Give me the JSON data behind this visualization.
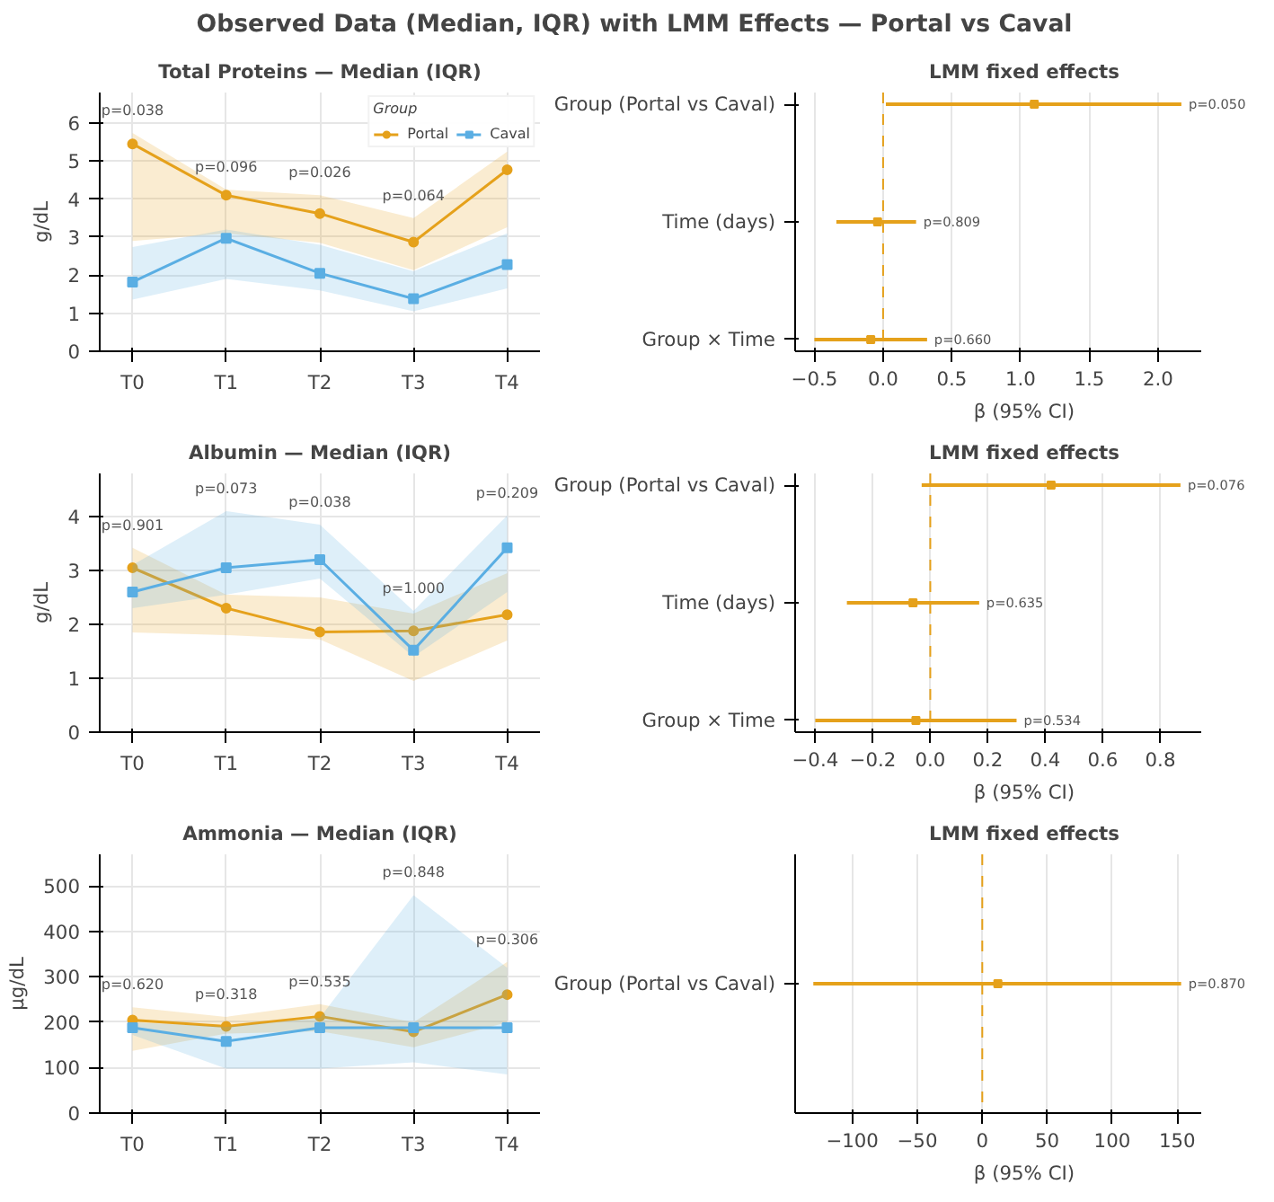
{
  "chart_data": [
    {
      "type": "other",
      "title": "Observed Data (Median, IQR) with LMM Effects — Portal vs Caval"
    },
    {
      "type": "line",
      "title": "Total Proteins — Median (IQR)",
      "ylabel": "g/dL",
      "categories": [
        "T0",
        "T1",
        "T2",
        "T3",
        "T4"
      ],
      "ylim": [
        0,
        6.8
      ],
      "yticks": [
        0,
        1,
        2,
        3,
        4,
        5,
        6
      ],
      "grid": true,
      "legend": "top right",
      "legend_title": "Group",
      "series": [
        {
          "name": "Portal",
          "color": "#e5a11b",
          "marker": "circle",
          "values": [
            5.45,
            4.1,
            3.62,
            2.87,
            4.77
          ],
          "lower": [
            2.9,
            3.1,
            2.85,
            2.13,
            3.26
          ],
          "upper": [
            5.74,
            4.25,
            4.1,
            3.5,
            5.25
          ]
        },
        {
          "name": "Caval",
          "color": "#5aaee3",
          "marker": "square",
          "values": [
            1.82,
            2.97,
            2.05,
            1.38,
            2.28
          ],
          "lower": [
            1.36,
            1.9,
            1.6,
            1.05,
            1.65
          ],
          "upper": [
            2.74,
            3.2,
            2.8,
            2.1,
            3.1
          ]
        }
      ],
      "annotations": [
        "p=0.038",
        "p=0.096",
        "p=0.026",
        "p=0.064"
      ]
    },
    {
      "type": "scatter",
      "orientation": "horizontal",
      "title": "LMM fixed effects",
      "xlabel": "β (95% CI)",
      "categories": [
        "Group (Portal vs Caval)",
        "Time (days)",
        "Group × Time"
      ],
      "xlim": [
        -0.64,
        2.31
      ],
      "xticks": [
        {
          "value": -0.5,
          "label": "−0.5"
        },
        {
          "value": 0,
          "label": "0.0"
        },
        0.5,
        {
          "value": 1,
          "label": "1.0"
        },
        1.5,
        {
          "value": 2,
          "label": "2.0"
        }
      ],
      "grid": "x",
      "marker": "square",
      "color": "#e5a11b",
      "values": [
        1.1,
        -0.04,
        -0.09
      ],
      "errors": [
        [
          0.02,
          2.17
        ],
        [
          -0.34,
          0.24
        ],
        [
          -0.5,
          0.32
        ]
      ],
      "annotations": [
        "p=0.050",
        "p=0.809",
        "p=0.660"
      ],
      "ref_lines": [
        {
          "axis": "x",
          "value": 0,
          "color": "#e5a11b",
          "line_style": "dashed"
        }
      ]
    },
    {
      "type": "line",
      "title": "Albumin — Median (IQR)",
      "ylabel": "g/dL",
      "categories": [
        "T0",
        "T1",
        "T2",
        "T3",
        "T4"
      ],
      "ylim": [
        0,
        4.8
      ],
      "yticks": [
        0,
        1,
        2,
        3,
        4
      ],
      "grid": true,
      "series": [
        {
          "color": "#e5a11b",
          "marker": "circle",
          "values": [
            3.05,
            2.3,
            1.86,
            1.88,
            2.18
          ],
          "lower": [
            1.85,
            1.8,
            1.72,
            0.95,
            1.7
          ],
          "upper": [
            3.42,
            2.55,
            2.5,
            2.2,
            2.95
          ]
        },
        {
          "color": "#5aaee3",
          "marker": "square",
          "values": [
            2.6,
            3.05,
            3.2,
            1.52,
            3.42
          ],
          "lower": [
            2.3,
            2.55,
            2.85,
            1.4,
            2.6
          ],
          "upper": [
            3.1,
            4.1,
            3.85,
            2.25,
            4.02
          ]
        }
      ],
      "annotations": [
        "p=0.901",
        "p=0.073",
        "p=0.038",
        "p=1.000",
        "p=0.209"
      ]
    },
    {
      "type": "scatter",
      "orientation": "horizontal",
      "title": "LMM fixed effects",
      "xlabel": "β (95% CI)",
      "categories": [
        "Group (Portal vs Caval)",
        "Time (days)",
        "Group × Time"
      ],
      "xlim": [
        -0.47,
        0.94
      ],
      "xticks": [
        {
          "value": -0.4,
          "label": "−0.4"
        },
        {
          "value": -0.2,
          "label": "−0.2"
        },
        {
          "value": 0,
          "label": "0.0"
        },
        0.2,
        0.4,
        0.6,
        0.8
      ],
      "grid": "x",
      "marker": "square",
      "color": "#e5a11b",
      "values": [
        0.42,
        -0.06,
        -0.05
      ],
      "errors": [
        [
          -0.03,
          0.87
        ],
        [
          -0.29,
          0.17
        ],
        [
          -0.4,
          0.3
        ]
      ],
      "annotations": [
        "p=0.076",
        "p=0.635",
        "p=0.534"
      ],
      "ref_lines": [
        {
          "axis": "x",
          "value": 0,
          "color": "#e5a11b",
          "line_style": "dashed"
        }
      ]
    },
    {
      "type": "line",
      "title": "Ammonia — Median (IQR)",
      "ylabel": "µg/dL",
      "categories": [
        "T0",
        "T1",
        "T2",
        "T3",
        "T4"
      ],
      "ylim": [
        0,
        570
      ],
      "yticks": [
        0,
        100,
        200,
        300,
        400,
        500
      ],
      "grid": true,
      "series": [
        {
          "color": "#e5a11b",
          "marker": "circle",
          "values": [
            205,
            191,
            213,
            179,
            261
          ],
          "lower": [
            137,
            175,
            180,
            145,
            200
          ],
          "upper": [
            233,
            212,
            240,
            200,
            333
          ]
        },
        {
          "color": "#5aaee3",
          "marker": "square",
          "values": [
            188,
            158,
            188,
            188,
            188
          ],
          "lower": [
            172,
            98,
            98,
            112,
            85
          ],
          "upper": [
            200,
            190,
            210,
            480,
            320
          ]
        }
      ],
      "annotations": [
        "p=0.620",
        "p=0.318",
        "p=0.535",
        "p=0.848",
        "p=0.306"
      ]
    },
    {
      "type": "scatter",
      "orientation": "horizontal",
      "title": "LMM fixed effects",
      "xlabel": "β (95% CI)",
      "categories": [
        "Group (Portal vs Caval)"
      ],
      "xlim": [
        -144,
        168
      ],
      "xticks": [
        {
          "value": -100,
          "label": "−100"
        },
        {
          "value": -50,
          "label": "−50"
        },
        0,
        50,
        100,
        150
      ],
      "grid": "x",
      "marker": "square",
      "color": "#e5a11b",
      "values": [
        12
      ],
      "errors": [
        [
          -130,
          153
        ]
      ],
      "annotations": [
        "p=0.870"
      ],
      "ref_lines": [
        {
          "axis": "x",
          "value": 0,
          "color": "#e5a11b",
          "line_style": "dashed"
        }
      ]
    }
  ]
}
